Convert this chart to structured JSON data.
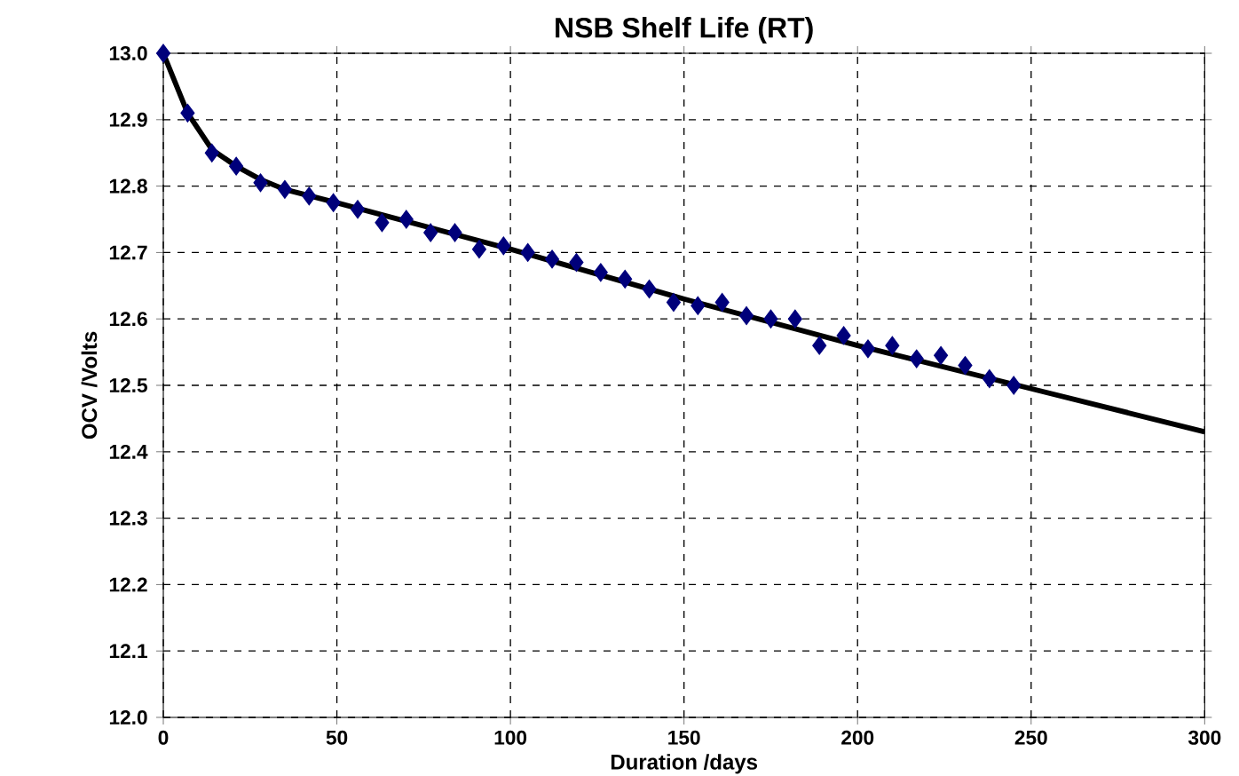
{
  "chart_data": {
    "type": "scatter",
    "title": "NSB Shelf Life (RT)",
    "xlabel": "Duration /days",
    "ylabel": "OCV /Volts",
    "xlim": [
      0,
      300
    ],
    "ylim": [
      12.0,
      13.0
    ],
    "xticks": [
      0,
      50,
      100,
      150,
      200,
      250,
      300
    ],
    "yticks": [
      {
        "value": 12.0,
        "label": "12.0"
      },
      {
        "value": 12.1,
        "label": "12.1"
      },
      {
        "value": 12.2,
        "label": "12.2"
      },
      {
        "value": 12.3,
        "label": "12.3"
      },
      {
        "value": 12.4,
        "label": "12.4"
      },
      {
        "value": 12.5,
        "label": "12.5"
      },
      {
        "value": 12.6,
        "label": "12.6"
      },
      {
        "value": 12.7,
        "label": "12.7"
      },
      {
        "value": 12.8,
        "label": "12.8"
      },
      {
        "value": 12.9,
        "label": "12.9"
      },
      {
        "value": 13.0,
        "label": "13.0"
      }
    ],
    "grid": true,
    "series": [
      {
        "color": "#00007f",
        "marker": "diamond",
        "x": [
          0,
          7,
          14,
          21,
          28,
          35,
          42,
          49,
          56,
          63,
          70,
          77,
          84,
          91,
          98,
          105,
          112,
          119,
          126,
          133,
          140,
          147,
          154,
          161,
          168,
          175,
          182,
          189,
          196,
          203,
          210,
          217,
          224,
          231,
          238,
          245
        ],
        "values": [
          13.0,
          12.91,
          12.85,
          12.83,
          12.805,
          12.795,
          12.785,
          12.775,
          12.765,
          12.745,
          12.75,
          12.73,
          12.73,
          12.705,
          12.71,
          12.7,
          12.69,
          12.685,
          12.67,
          12.66,
          12.645,
          12.625,
          12.62,
          12.625,
          12.605,
          12.6,
          12.6,
          12.56,
          12.575,
          12.555,
          12.56,
          12.54,
          12.545,
          12.53,
          12.51,
          12.5
        ]
      },
      {
        "type": "line",
        "color": "#000000",
        "marker": "none",
        "line_style": "solid",
        "x": [
          0,
          7,
          14,
          21,
          28,
          35,
          50,
          100,
          150,
          200,
          250,
          300
        ],
        "values": [
          13.0,
          12.91,
          12.855,
          12.83,
          12.81,
          12.795,
          12.775,
          12.705,
          12.63,
          12.56,
          12.495,
          12.43
        ]
      }
    ]
  }
}
